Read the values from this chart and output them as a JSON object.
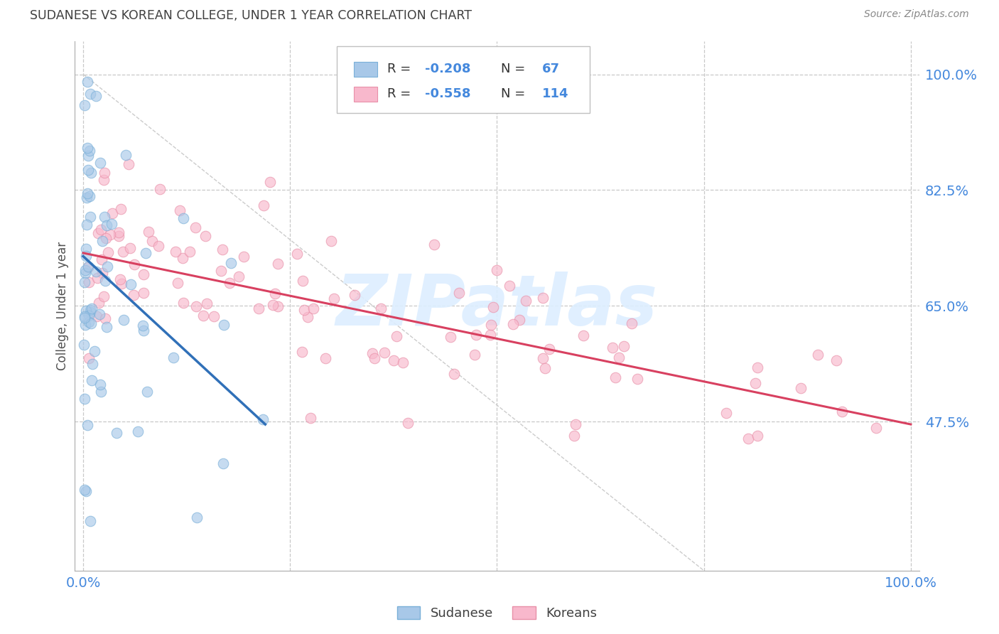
{
  "title": "SUDANESE VS KOREAN COLLEGE, UNDER 1 YEAR CORRELATION CHART",
  "source": "Source: ZipAtlas.com",
  "ylabel": "College, Under 1 year",
  "x_tick_left": "0.0%",
  "x_tick_right": "100.0%",
  "y_ticks_right": [
    0.475,
    0.65,
    0.825,
    1.0
  ],
  "y_tick_labels_right": [
    "47.5%",
    "65.0%",
    "82.5%",
    "100.0%"
  ],
  "watermark": "ZIPatlas",
  "legend_r_blue": "R = -0.208",
  "legend_n_blue": "N =  67",
  "legend_r_pink": "R = -0.558",
  "legend_n_pink": "N = 114",
  "blue_fill": "#a8c8e8",
  "blue_edge": "#7ab0d8",
  "pink_fill": "#f8b8cc",
  "pink_edge": "#e890a8",
  "blue_line": "#3070b8",
  "pink_line": "#d84060",
  "grid_color": "#c8c8c8",
  "diag_color": "#cccccc",
  "text_blue": "#4488dd",
  "legend_box_edge": "#c0c0c0",
  "title_color": "#404040",
  "source_color": "#888888",
  "ylabel_color": "#505050",
  "bg_color": "#ffffff",
  "scatter_alpha": 0.65,
  "scatter_size": 110,
  "blue_line_x_start": 0.0,
  "blue_line_x_end": 0.22,
  "blue_line_y_start": 0.725,
  "blue_line_y_end": 0.471,
  "pink_line_x_start": 0.0,
  "pink_line_x_end": 1.0,
  "pink_line_y_start": 0.73,
  "pink_line_y_end": 0.471,
  "xmin": -0.01,
  "xmax": 1.01,
  "ymin": 0.25,
  "ymax": 1.05
}
